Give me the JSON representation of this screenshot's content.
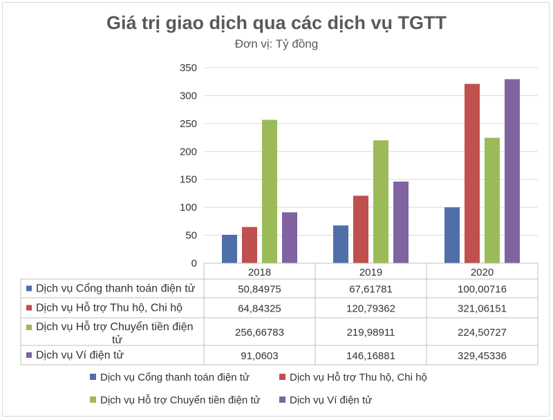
{
  "chart_data": {
    "type": "bar",
    "title": "Giá trị giao dịch qua các dịch vụ TGTT",
    "subtitle": "Đơn vị: Tỷ đồng",
    "categories": [
      "2018",
      "2019",
      "2020"
    ],
    "ylim": [
      0,
      350
    ],
    "yticks": [
      0,
      50,
      100,
      150,
      200,
      250,
      300,
      350
    ],
    "grid": true,
    "series": [
      {
        "name": "Dịch vụ Cổng thanh toán điện tử",
        "color": "#4F6FA8",
        "values": [
          50.84975,
          67.61781,
          100.00716
        ],
        "labels": [
          "50,84975",
          "67,61781",
          "100,00716"
        ]
      },
      {
        "name": "Dịch vụ Hỗ trợ Thu hộ, Chi hộ",
        "color": "#C0504D",
        "values": [
          64.84325,
          120.79362,
          321.06151
        ],
        "labels": [
          "64,84325",
          "120,79362",
          "321,06151"
        ]
      },
      {
        "name": "Dịch vụ Hỗ trợ Chuyển tiền điện tử",
        "color": "#9BBB59",
        "values": [
          256.66783,
          219.98911,
          224.50727
        ],
        "labels": [
          "256,66783",
          "219,98911",
          "224,50727"
        ]
      },
      {
        "name": "Dịch vụ Ví điện tử",
        "color": "#8064A2",
        "values": [
          91.0603,
          146.16881,
          329.45336
        ],
        "labels": [
          "91,0603",
          "146,16881",
          "329,45336"
        ]
      }
    ],
    "table_row_names": [
      [
        "Dịch vụ Cổng thanh toán điện tử"
      ],
      [
        "Dịch vụ Hỗ trợ Thu hộ, Chi hộ"
      ],
      [
        "Dịch vụ Hỗ trợ Chuyển tiền điện",
        "tử"
      ],
      [
        "Dịch vụ Ví điện tử"
      ]
    ]
  }
}
